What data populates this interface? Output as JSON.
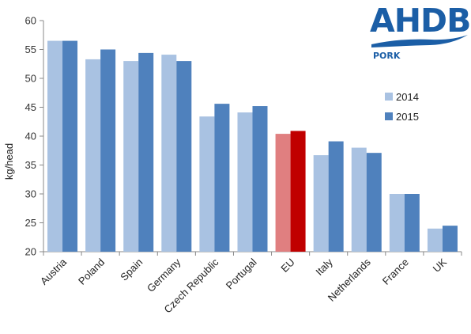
{
  "logo": {
    "text": "AHDB",
    "subtext": "PORK",
    "color": "#1b5ea6"
  },
  "chart_data": {
    "type": "bar",
    "title": "",
    "xlabel": "",
    "ylabel": "kg/head",
    "ylim": [
      20,
      60
    ],
    "yticks": [
      20,
      25,
      30,
      35,
      40,
      45,
      50,
      55,
      60
    ],
    "categories": [
      "Austria",
      "Poland",
      "Spain",
      "Germany",
      "Czech Republic",
      "Portugal",
      "EU",
      "Italy",
      "Netherlands",
      "France",
      "UK"
    ],
    "series": [
      {
        "name": "2014",
        "color": "#a9c2e2",
        "values": [
          56.5,
          53.3,
          53.0,
          54.1,
          43.4,
          44.1,
          40.4,
          36.7,
          38.0,
          30.0,
          24.0
        ]
      },
      {
        "name": "2015",
        "color": "#4f81bd",
        "values": [
          56.5,
          55.0,
          54.4,
          53.0,
          45.6,
          45.2,
          40.9,
          39.1,
          37.1,
          30.0,
          24.5
        ]
      }
    ],
    "highlight": {
      "category": "EU",
      "colors": [
        "#e07f80",
        "#c00000"
      ]
    },
    "legend": {
      "position": "right"
    },
    "grid": false
  }
}
